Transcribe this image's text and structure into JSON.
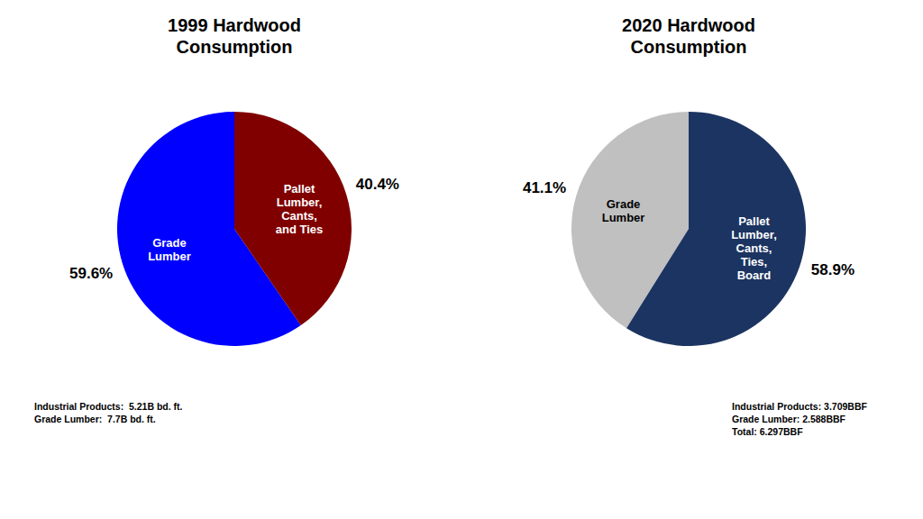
{
  "chart_data": [
    {
      "type": "pie",
      "title": "1999 Hardwood\nConsumption",
      "categories": [
        "Grade\nLumber",
        "Pallet\nLumber,\nCants,\nand Ties"
      ],
      "values": [
        59.6,
        40.4
      ],
      "value_labels": [
        "59.6%",
        "40.4%"
      ],
      "colors": [
        "#0000FF",
        "#800000"
      ],
      "data_labels": true,
      "annotations": [
        "Industrial Products:  5.21B bd. ft.\nGrade Lumber:  7.7B bd. ft."
      ]
    },
    {
      "type": "pie",
      "title": "2020 Hardwood\nConsumption",
      "categories": [
        "Grade\nLumber",
        "Pallet\nLumber,\nCants,\nTies,\nBoard"
      ],
      "values": [
        41.1,
        58.9
      ],
      "value_labels": [
        "41.1%",
        "58.9%"
      ],
      "colors": [
        "#C0C0C0",
        "#1C3461"
      ],
      "data_labels": true,
      "annotations": [
        "Industrial Products: 3.709BBF\nGrade Lumber: 2.588BBF\nTotal: 6.297BBF"
      ]
    }
  ]
}
